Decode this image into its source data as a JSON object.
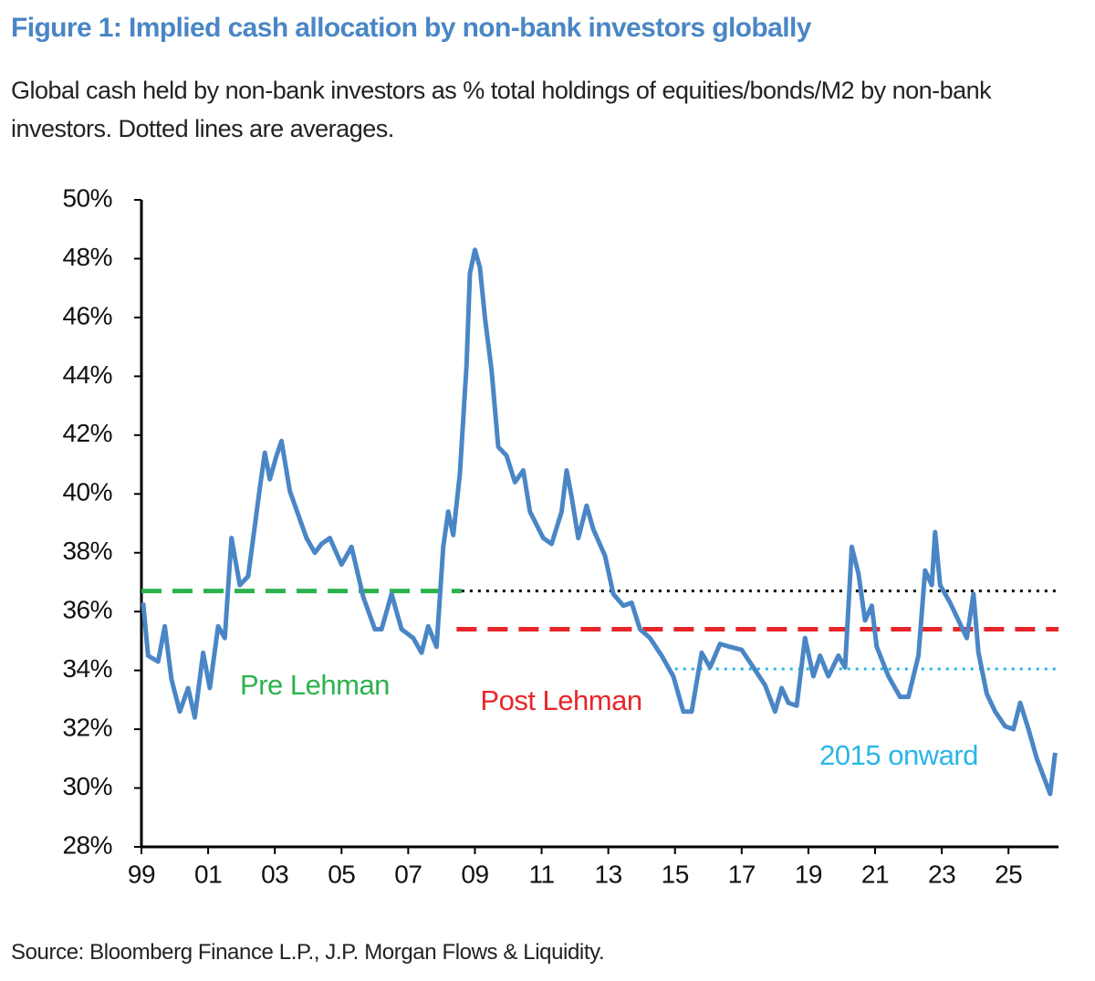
{
  "chart_data": {
    "type": "line",
    "title": "Figure 1: Implied cash allocation by non-bank investors globally",
    "subtitle": "Global cash held by non-bank investors as % total holdings of equities/bonds/M2 by non-bank investors. Dotted lines are averages.",
    "source": "Source: Bloomberg Finance L.P., J.P. Morgan Flows & Liquidity.",
    "xlim": [
      1999,
      2026.5
    ],
    "xticks": [
      {
        "value": 1999,
        "label": "99"
      },
      {
        "value": 2001,
        "label": "01"
      },
      {
        "value": 2003,
        "label": "03"
      },
      {
        "value": 2005,
        "label": "05"
      },
      {
        "value": 2007,
        "label": "07"
      },
      {
        "value": 2009,
        "label": "09"
      },
      {
        "value": 2011,
        "label": "11"
      },
      {
        "value": 2013,
        "label": "13"
      },
      {
        "value": 2015,
        "label": "15"
      },
      {
        "value": 2017,
        "label": "17"
      },
      {
        "value": 2019,
        "label": "19"
      },
      {
        "value": 2021,
        "label": "21"
      },
      {
        "value": 2023,
        "label": "23"
      },
      {
        "value": 2025,
        "label": "25"
      }
    ],
    "ylim": [
      28,
      50
    ],
    "yticks": [
      {
        "value": 28,
        "label": "28%"
      },
      {
        "value": 30,
        "label": "30%"
      },
      {
        "value": 32,
        "label": "32%"
      },
      {
        "value": 34,
        "label": "34%"
      },
      {
        "value": 36,
        "label": "36%"
      },
      {
        "value": 38,
        "label": "38%"
      },
      {
        "value": 40,
        "label": "40%"
      },
      {
        "value": 42,
        "label": "42%"
      },
      {
        "value": 44,
        "label": "44%"
      },
      {
        "value": 46,
        "label": "46%"
      },
      {
        "value": 48,
        "label": "48%"
      },
      {
        "value": 50,
        "label": "50%"
      }
    ],
    "series": [
      {
        "color": "#4a86c5",
        "x": [
          1999.05,
          1999.2,
          1999.5,
          1999.7,
          1999.9,
          2000.15,
          2000.4,
          2000.6,
          2000.85,
          2001.05,
          2001.3,
          2001.5,
          2001.7,
          2001.95,
          2002.2,
          2002.55,
          2002.7,
          2002.85,
          2003.05,
          2003.2,
          2003.45,
          2003.95,
          2004.2,
          2004.4,
          2004.65,
          2005.0,
          2005.3,
          2005.65,
          2006.0,
          2006.2,
          2006.5,
          2006.8,
          2007.15,
          2007.4,
          2007.6,
          2007.85,
          2008.05,
          2008.2,
          2008.35,
          2008.55,
          2008.75,
          2008.85,
          2009.0,
          2009.15,
          2009.3,
          2009.5,
          2009.7,
          2009.95,
          2010.2,
          2010.45,
          2010.65,
          2011.05,
          2011.3,
          2011.6,
          2011.75,
          2011.9,
          2012.1,
          2012.35,
          2012.55,
          2012.9,
          2013.15,
          2013.45,
          2013.7,
          2013.95,
          2014.25,
          2014.6,
          2014.95,
          2015.25,
          2015.5,
          2015.8,
          2016.05,
          2016.35,
          2016.65,
          2017.0,
          2017.35,
          2017.7,
          2018.0,
          2018.2,
          2018.4,
          2018.65,
          2018.9,
          2019.15,
          2019.35,
          2019.6,
          2019.9,
          2020.1,
          2020.3,
          2020.5,
          2020.7,
          2020.9,
          2021.05,
          2021.4,
          2021.75,
          2022.0,
          2022.3,
          2022.5,
          2022.7,
          2022.8,
          2022.95,
          2023.25,
          2023.5,
          2023.75,
          2023.95,
          2024.1,
          2024.35,
          2024.6,
          2024.9,
          2025.15,
          2025.35,
          2025.6,
          2025.85,
          2026.05,
          2026.25,
          2026.4
        ],
        "values": [
          36.3,
          34.5,
          34.3,
          35.5,
          33.7,
          32.6,
          33.4,
          32.4,
          34.6,
          33.4,
          35.5,
          35.1,
          38.5,
          36.9,
          37.2,
          40.2,
          41.4,
          40.5,
          41.3,
          41.8,
          40.1,
          38.5,
          38.0,
          38.3,
          38.5,
          37.6,
          38.2,
          36.5,
          35.4,
          35.4,
          36.6,
          35.4,
          35.1,
          34.6,
          35.5,
          34.8,
          38.2,
          39.4,
          38.6,
          40.7,
          44.4,
          47.5,
          48.3,
          47.7,
          46.0,
          44.2,
          41.6,
          41.3,
          40.4,
          40.8,
          39.4,
          38.5,
          38.3,
          39.4,
          40.8,
          39.9,
          38.5,
          39.6,
          38.8,
          37.9,
          36.6,
          36.2,
          36.3,
          35.4,
          35.1,
          34.5,
          33.8,
          32.6,
          32.6,
          34.6,
          34.1,
          34.9,
          34.8,
          34.7,
          34.1,
          33.5,
          32.6,
          33.4,
          32.9,
          32.8,
          35.1,
          33.8,
          34.5,
          33.8,
          34.5,
          34.1,
          38.2,
          37.3,
          35.7,
          36.2,
          34.8,
          33.8,
          33.1,
          33.1,
          34.5,
          37.4,
          36.9,
          38.7,
          36.9,
          36.3,
          35.7,
          35.1,
          36.6,
          34.6,
          33.2,
          32.6,
          32.1,
          32.0,
          32.9,
          32.0,
          31.0,
          30.4,
          29.8,
          31.2
        ]
      }
    ],
    "averages": [
      {
        "name": "Pre Lehman",
        "color": "#2bb24c",
        "style": "dashed",
        "x": [
          1999,
          2008.6
        ],
        "values": [
          36.7,
          36.7
        ]
      },
      {
        "color": "#000000",
        "style": "dotted",
        "x": [
          2008.6,
          2026.5
        ],
        "values": [
          36.7,
          36.7
        ]
      },
      {
        "name": "Post Lehman",
        "color": "#e8262a",
        "style": "dashed",
        "x": [
          2008.45,
          2026.5
        ],
        "values": [
          35.4,
          35.4
        ]
      },
      {
        "name": "2015 onward",
        "color": "#29b6e6",
        "style": "dotted",
        "x": [
          2015.0,
          2026.5
        ],
        "values": [
          34.05,
          34.05
        ]
      }
    ]
  }
}
